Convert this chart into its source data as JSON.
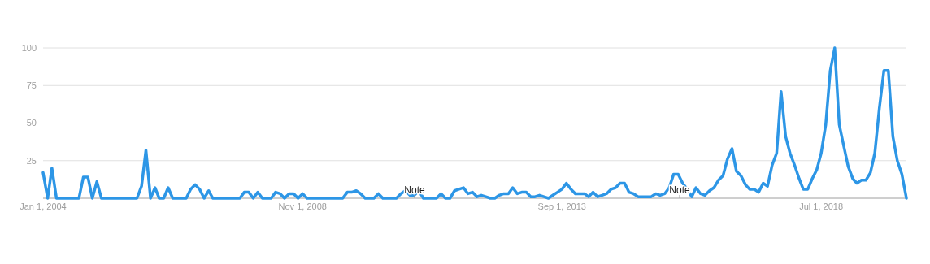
{
  "chart_data": {
    "type": "line",
    "xlim": [
      "2004-01",
      "2020-02"
    ],
    "ylim": [
      0,
      100
    ],
    "xticks": [
      {
        "value": "2004-01-01",
        "label": "Jan 1, 2004"
      },
      {
        "value": "2008-11-01",
        "label": "Nov 1, 2008"
      },
      {
        "value": "2013-09-01",
        "label": "Sep 1, 2013"
      },
      {
        "value": "2018-07-01",
        "label": "Jul 1, 2018"
      }
    ],
    "yticks": [
      {
        "value": 0,
        "label": null
      },
      25,
      50,
      75,
      100
    ],
    "grid": "y",
    "marker": "none",
    "line_style": "solid",
    "annotations": [
      "Note",
      "Note"
    ],
    "series": [
      {
        "color": "#2d96e6",
        "x": [
          "2004-01",
          "2004-02",
          "2004-03",
          "2004-04",
          "2004-05",
          "2004-06",
          "2004-07",
          "2004-08",
          "2004-09",
          "2004-10",
          "2004-11",
          "2004-12",
          "2005-01",
          "2005-02",
          "2005-03",
          "2005-04",
          "2005-05",
          "2005-06",
          "2005-07",
          "2005-08",
          "2005-09",
          "2005-10",
          "2005-11",
          "2005-12",
          "2006-01",
          "2006-02",
          "2006-03",
          "2006-04",
          "2006-05",
          "2006-06",
          "2006-07",
          "2006-08",
          "2006-09",
          "2006-10",
          "2006-11",
          "2006-12",
          "2007-01",
          "2007-02",
          "2007-03",
          "2007-04",
          "2007-05",
          "2007-06",
          "2007-07",
          "2007-08",
          "2007-09",
          "2007-10",
          "2007-11",
          "2007-12",
          "2008-01",
          "2008-02",
          "2008-03",
          "2008-04",
          "2008-05",
          "2008-06",
          "2008-07",
          "2008-08",
          "2008-09",
          "2008-10",
          "2008-11",
          "2008-12",
          "2009-01",
          "2009-02",
          "2009-03",
          "2009-04",
          "2009-05",
          "2009-06",
          "2009-07",
          "2009-08",
          "2009-09",
          "2009-10",
          "2009-11",
          "2009-12",
          "2010-01",
          "2010-02",
          "2010-03",
          "2010-04",
          "2010-05",
          "2010-06",
          "2010-07",
          "2010-08",
          "2010-09",
          "2010-10",
          "2010-11",
          "2010-12",
          "2011-01",
          "2011-02",
          "2011-03",
          "2011-04",
          "2011-05",
          "2011-06",
          "2011-07",
          "2011-08",
          "2011-09",
          "2011-10",
          "2011-11",
          "2011-12",
          "2012-01",
          "2012-02",
          "2012-03",
          "2012-04",
          "2012-05",
          "2012-06",
          "2012-07",
          "2012-08",
          "2012-09",
          "2012-10",
          "2012-11",
          "2012-12",
          "2013-01",
          "2013-02",
          "2013-03",
          "2013-04",
          "2013-05",
          "2013-06",
          "2013-07",
          "2013-08",
          "2013-09",
          "2013-10",
          "2013-11",
          "2013-12",
          "2014-01",
          "2014-02",
          "2014-03",
          "2014-04",
          "2014-05",
          "2014-06",
          "2014-07",
          "2014-08",
          "2014-09",
          "2014-10",
          "2014-11",
          "2014-12",
          "2015-01",
          "2015-02",
          "2015-03",
          "2015-04",
          "2015-05",
          "2015-06",
          "2015-07",
          "2015-08",
          "2015-09",
          "2015-10",
          "2015-11",
          "2015-12",
          "2016-01",
          "2016-02",
          "2016-03",
          "2016-04",
          "2016-05",
          "2016-06",
          "2016-07",
          "2016-08",
          "2016-09",
          "2016-10",
          "2016-11",
          "2016-12",
          "2017-01",
          "2017-02",
          "2017-03",
          "2017-04",
          "2017-05",
          "2017-06",
          "2017-07",
          "2017-08",
          "2017-09",
          "2017-10",
          "2017-11",
          "2017-12",
          "2018-01",
          "2018-02",
          "2018-03",
          "2018-04",
          "2018-05",
          "2018-06",
          "2018-07",
          "2018-08",
          "2018-09",
          "2018-10",
          "2018-11",
          "2018-12",
          "2019-01",
          "2019-02",
          "2019-03",
          "2019-04",
          "2019-05",
          "2019-06",
          "2019-07",
          "2019-08",
          "2019-09",
          "2019-10",
          "2019-11",
          "2019-12",
          "2020-01",
          "2020-02"
        ],
        "values": [
          17,
          0,
          20,
          0,
          0,
          0,
          0,
          0,
          0,
          14,
          14,
          0,
          11,
          0,
          0,
          0,
          0,
          0,
          0,
          0,
          0,
          0,
          8,
          32,
          0,
          7,
          0,
          0,
          7,
          0,
          0,
          0,
          0,
          6,
          9,
          6,
          0,
          5,
          0,
          0,
          0,
          0,
          0,
          0,
          0,
          4,
          4,
          0,
          4,
          0,
          0,
          0,
          4,
          3,
          0,
          3,
          3,
          0,
          3,
          0,
          0,
          0,
          0,
          0,
          0,
          0,
          0,
          0,
          4,
          4,
          5,
          3,
          0,
          0,
          0,
          3,
          0,
          0,
          0,
          0,
          3,
          5,
          2,
          2,
          5,
          0,
          0,
          0,
          0,
          3,
          0,
          0,
          5,
          6,
          7,
          3,
          4,
          1,
          2,
          1,
          0,
          0,
          2,
          3,
          3,
          7,
          3,
          4,
          4,
          1,
          1,
          2,
          1,
          0,
          2,
          4,
          6,
          10,
          6,
          3,
          3,
          3,
          1,
          4,
          1,
          2,
          3,
          6,
          7,
          10,
          10,
          4,
          3,
          1,
          1,
          1,
          1,
          3,
          2,
          3,
          7,
          16,
          16,
          10,
          6,
          1,
          7,
          3,
          2,
          5,
          7,
          12,
          15,
          26,
          33,
          18,
          15,
          9,
          6,
          6,
          4,
          10,
          8,
          22,
          30,
          71,
          41,
          30,
          22,
          13,
          6,
          6,
          13,
          19,
          30,
          49,
          85,
          100,
          49,
          35,
          21,
          13,
          10,
          12,
          12,
          17,
          30,
          60,
          85,
          85,
          41,
          25,
          16,
          0
        ]
      }
    ]
  }
}
